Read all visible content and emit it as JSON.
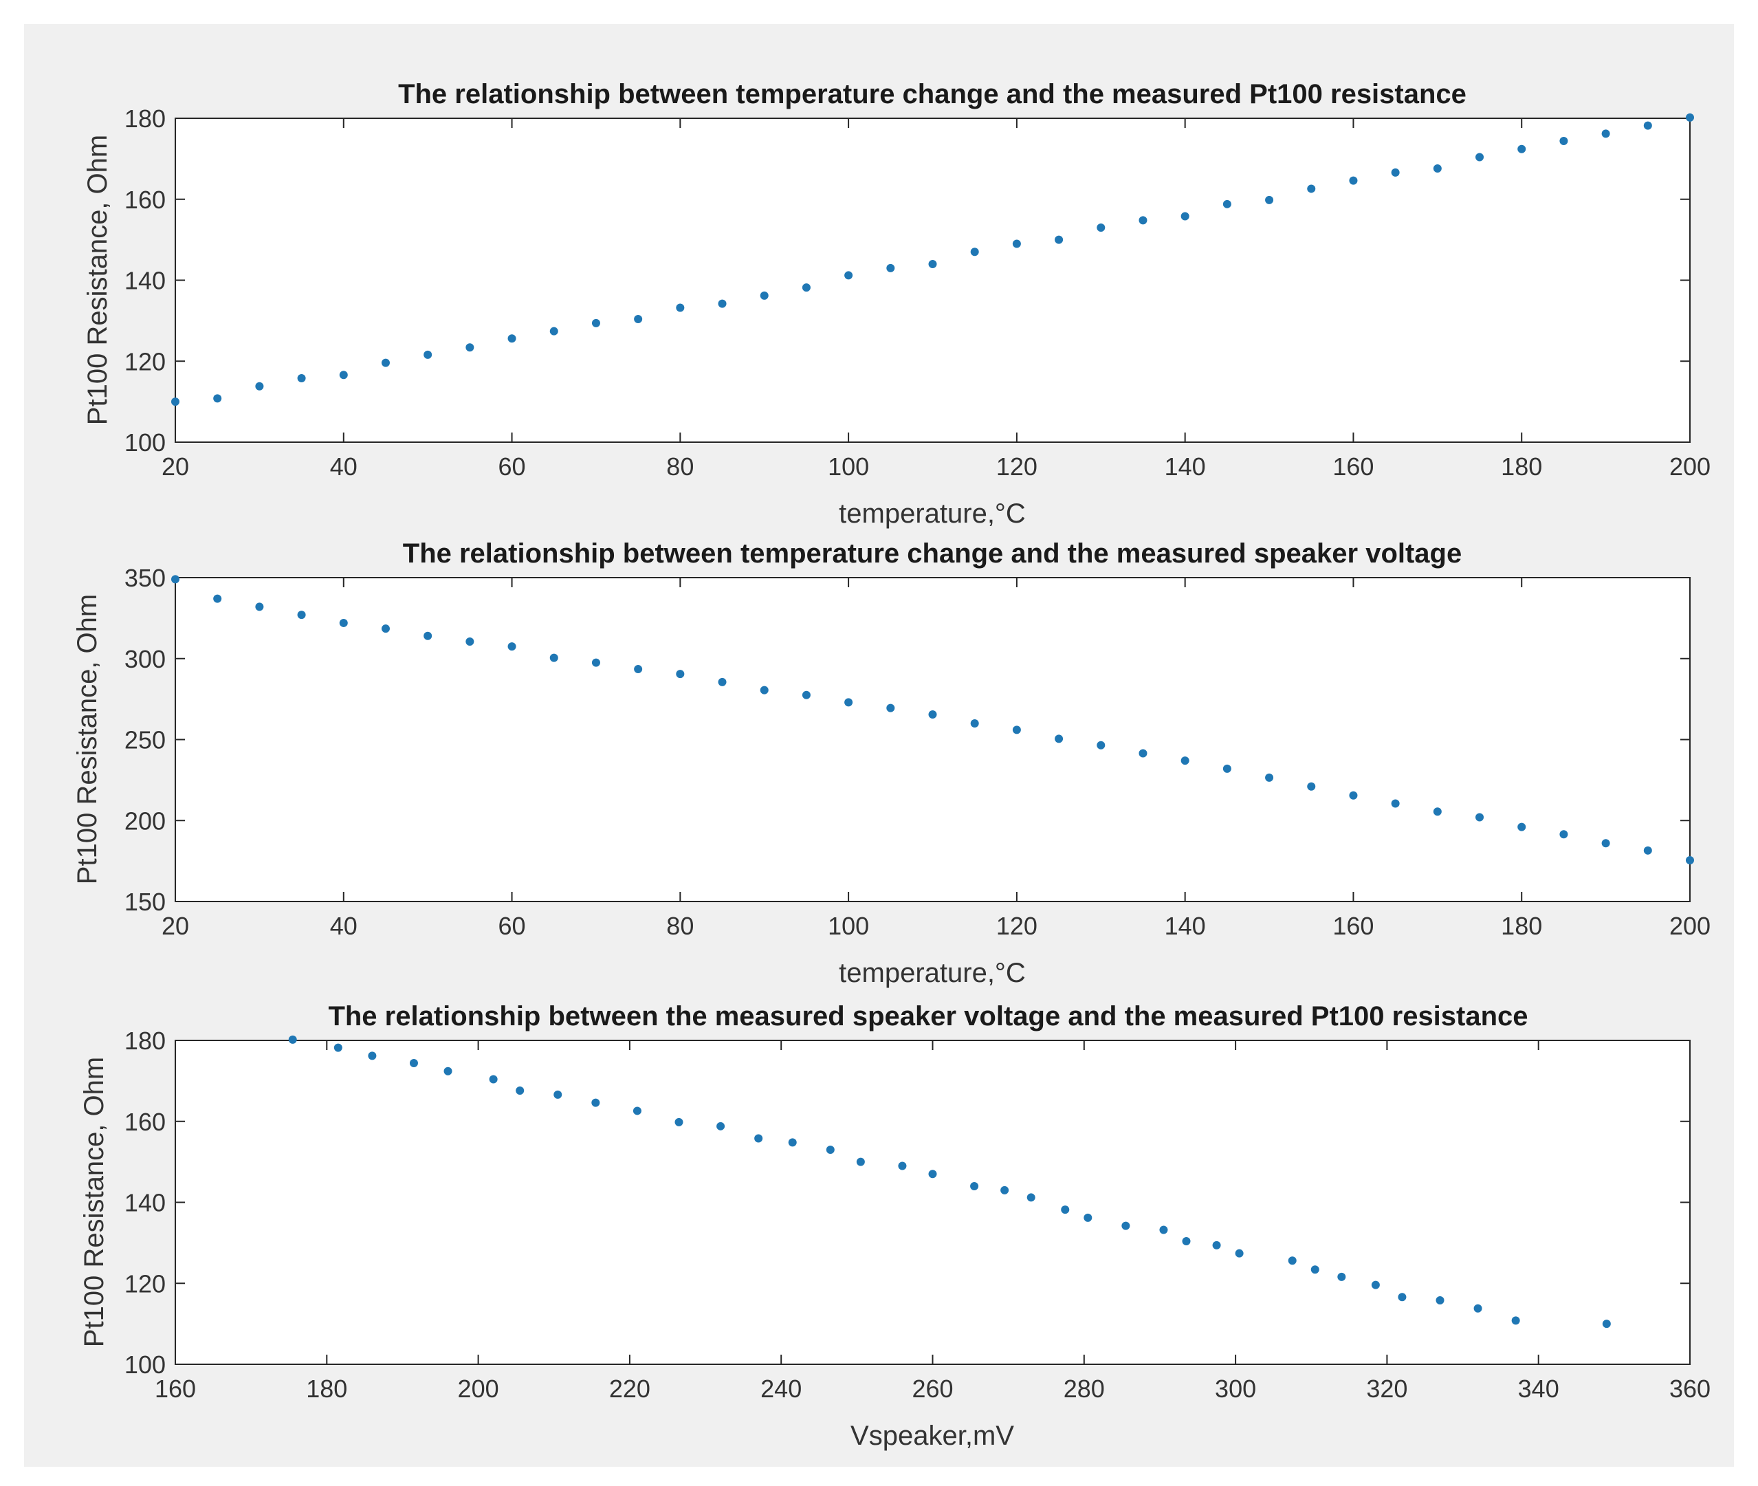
{
  "chart_data": [
    {
      "type": "scatter",
      "title": "The relationship between temperature change and the measured Pt100 resistance",
      "xlabel": "temperature,°C",
      "ylabel": "Pt100 Resistance, Ohm",
      "xlim": [
        20,
        200
      ],
      "ylim": [
        100,
        180
      ],
      "xticks": [
        20,
        40,
        60,
        80,
        100,
        120,
        140,
        160,
        180,
        200
      ],
      "yticks": [
        100,
        120,
        140,
        160,
        180
      ],
      "marker_color": "#1f77b4",
      "x": [
        20,
        25,
        30,
        35,
        40,
        45,
        50,
        55,
        60,
        65,
        70,
        75,
        80,
        85,
        90,
        95,
        100,
        105,
        110,
        115,
        120,
        125,
        130,
        135,
        140,
        145,
        150,
        155,
        160,
        165,
        170,
        175,
        180,
        185,
        190,
        195,
        200
      ],
      "y": [
        110,
        110.8,
        113.8,
        115.8,
        116.6,
        119.6,
        121.6,
        123.4,
        125.6,
        127.4,
        129.4,
        130.4,
        133.2,
        134.2,
        136.2,
        138.2,
        141.2,
        143,
        144,
        147,
        149,
        150,
        153,
        154.8,
        155.8,
        158.8,
        159.8,
        162.6,
        164.6,
        166.6,
        167.6,
        170.4,
        172.4,
        174.4,
        176.2,
        178.2,
        180.2
      ]
    },
    {
      "type": "scatter",
      "title": "The relationship between temperature change and the measured speaker voltage",
      "xlabel": "temperature,°C",
      "ylabel": "Pt100 Resistance, Ohm",
      "xlim": [
        20,
        200
      ],
      "ylim": [
        150,
        350
      ],
      "xticks": [
        20,
        40,
        60,
        80,
        100,
        120,
        140,
        160,
        180,
        200
      ],
      "yticks": [
        150,
        200,
        250,
        300,
        350
      ],
      "marker_color": "#1f77b4",
      "x": [
        20,
        25,
        30,
        35,
        40,
        45,
        50,
        55,
        60,
        65,
        70,
        75,
        80,
        85,
        90,
        95,
        100,
        105,
        110,
        115,
        120,
        125,
        130,
        135,
        140,
        145,
        150,
        155,
        160,
        165,
        170,
        175,
        180,
        185,
        190,
        195,
        200
      ],
      "y": [
        349,
        337,
        332,
        327,
        322,
        318.5,
        314,
        310.5,
        307.5,
        300.5,
        297.5,
        293.5,
        290.5,
        285.5,
        280.5,
        277.5,
        273,
        269.5,
        265.5,
        260,
        256,
        250.5,
        246.5,
        241.5,
        237,
        232,
        226.5,
        221,
        215.5,
        210.5,
        205.5,
        202,
        196,
        191.5,
        186,
        181.5,
        175.5
      ]
    },
    {
      "type": "scatter",
      "title": "The relationship between the measured speaker voltage and the measured Pt100 resistance",
      "xlabel": "Vspeaker,mV",
      "ylabel": "Pt100 Resistance, Ohm",
      "xlim": [
        160,
        360
      ],
      "ylim": [
        100,
        180
      ],
      "xticks": [
        160,
        180,
        200,
        220,
        240,
        260,
        280,
        300,
        320,
        340,
        360
      ],
      "yticks": [
        100,
        120,
        140,
        160,
        180
      ],
      "marker_color": "#1f77b4",
      "x": [
        175.5,
        181.5,
        186,
        191.5,
        196,
        202,
        205.5,
        210.5,
        215.5,
        221,
        226.5,
        232,
        237,
        241.5,
        246.5,
        250.5,
        256,
        260,
        265.5,
        269.5,
        273,
        277.5,
        280.5,
        285.5,
        290.5,
        293.5,
        297.5,
        300.5,
        307.5,
        310.5,
        314,
        318.5,
        322,
        327,
        332,
        337,
        349
      ],
      "y": [
        180.2,
        178.2,
        176.2,
        174.4,
        172.4,
        170.4,
        167.6,
        166.6,
        164.6,
        162.6,
        159.8,
        158.8,
        155.8,
        154.8,
        153,
        150,
        149,
        147,
        144,
        143,
        141.2,
        138.2,
        136.2,
        134.2,
        133.2,
        130.4,
        129.4,
        127.4,
        125.6,
        123.4,
        121.6,
        119.6,
        116.6,
        115.8,
        113.8,
        110.8,
        110
      ]
    }
  ]
}
